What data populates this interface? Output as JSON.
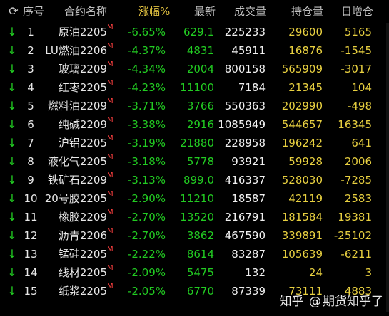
{
  "header": {
    "refresh_icon": "refresh-icon",
    "columns": [
      "序号",
      "合约名称",
      "涨幅%",
      "最新",
      "成交量",
      "持仓量",
      "日增仓"
    ]
  },
  "rows": [
    {
      "idx": "1",
      "name": "原油2205",
      "chg": "-6.65%",
      "last": "629.1",
      "vol": "225233",
      "oi": "29600",
      "day": "5165"
    },
    {
      "idx": "2",
      "name": "LU燃油2206",
      "chg": "-4.37%",
      "last": "4831",
      "vol": "45911",
      "oi": "16876",
      "day": "-1545"
    },
    {
      "idx": "3",
      "name": "玻璃2209",
      "chg": "-4.34%",
      "last": "2004",
      "vol": "800158",
      "oi": "565909",
      "day": "-3017"
    },
    {
      "idx": "4",
      "name": "红枣2205",
      "chg": "-4.23%",
      "last": "11100",
      "vol": "7184",
      "oi": "21345",
      "day": "104"
    },
    {
      "idx": "5",
      "name": "燃料油2209",
      "chg": "-3.71%",
      "last": "3766",
      "vol": "550363",
      "oi": "202990",
      "day": "-498"
    },
    {
      "idx": "6",
      "name": "纯碱2209",
      "chg": "-3.38%",
      "last": "2916",
      "vol": "1085949",
      "oi": "544657",
      "day": "16345"
    },
    {
      "idx": "7",
      "name": "沪铝2205",
      "chg": "-3.19%",
      "last": "21880",
      "vol": "228958",
      "oi": "196242",
      "day": "641"
    },
    {
      "idx": "8",
      "name": "液化气2205",
      "chg": "-3.18%",
      "last": "5778",
      "vol": "93921",
      "oi": "59928",
      "day": "2006"
    },
    {
      "idx": "9",
      "name": "铁矿石2209",
      "chg": "-3.13%",
      "last": "899.0",
      "vol": "416337",
      "oi": "528030",
      "day": "-7285"
    },
    {
      "idx": "10",
      "name": "20号胶2205",
      "chg": "-2.90%",
      "last": "11210",
      "vol": "18587",
      "oi": "42119",
      "day": "2583"
    },
    {
      "idx": "11",
      "name": "橡胶2209",
      "chg": "-2.70%",
      "last": "13520",
      "vol": "216791",
      "oi": "181584",
      "day": "19381"
    },
    {
      "idx": "12",
      "name": "沥青2206",
      "chg": "-2.70%",
      "last": "3862",
      "vol": "467590",
      "oi": "339891",
      "day": "-25102"
    },
    {
      "idx": "13",
      "name": "锰硅2205",
      "chg": "-2.22%",
      "last": "8614",
      "vol": "83287",
      "oi": "105639",
      "day": "-6211"
    },
    {
      "idx": "14",
      "name": "线材2205",
      "chg": "-2.09%",
      "last": "5475",
      "vol": "132",
      "oi": "24",
      "day": "3"
    },
    {
      "idx": "15",
      "name": "纸浆2205",
      "chg": "-2.05%",
      "last": "6770",
      "vol": "87339",
      "oi": "73111",
      "day": "4883"
    }
  ],
  "row_flag": "M",
  "row_arrow": "↓",
  "watermark": {
    "prefix": "知乎",
    "at": "@",
    "name": "期货知乎了"
  },
  "colors": {
    "down": "#22cc22",
    "flag": "#ff4040",
    "oi": "#e8d040",
    "header": "#c0c0c0",
    "sorted_header": "#e0c040"
  }
}
